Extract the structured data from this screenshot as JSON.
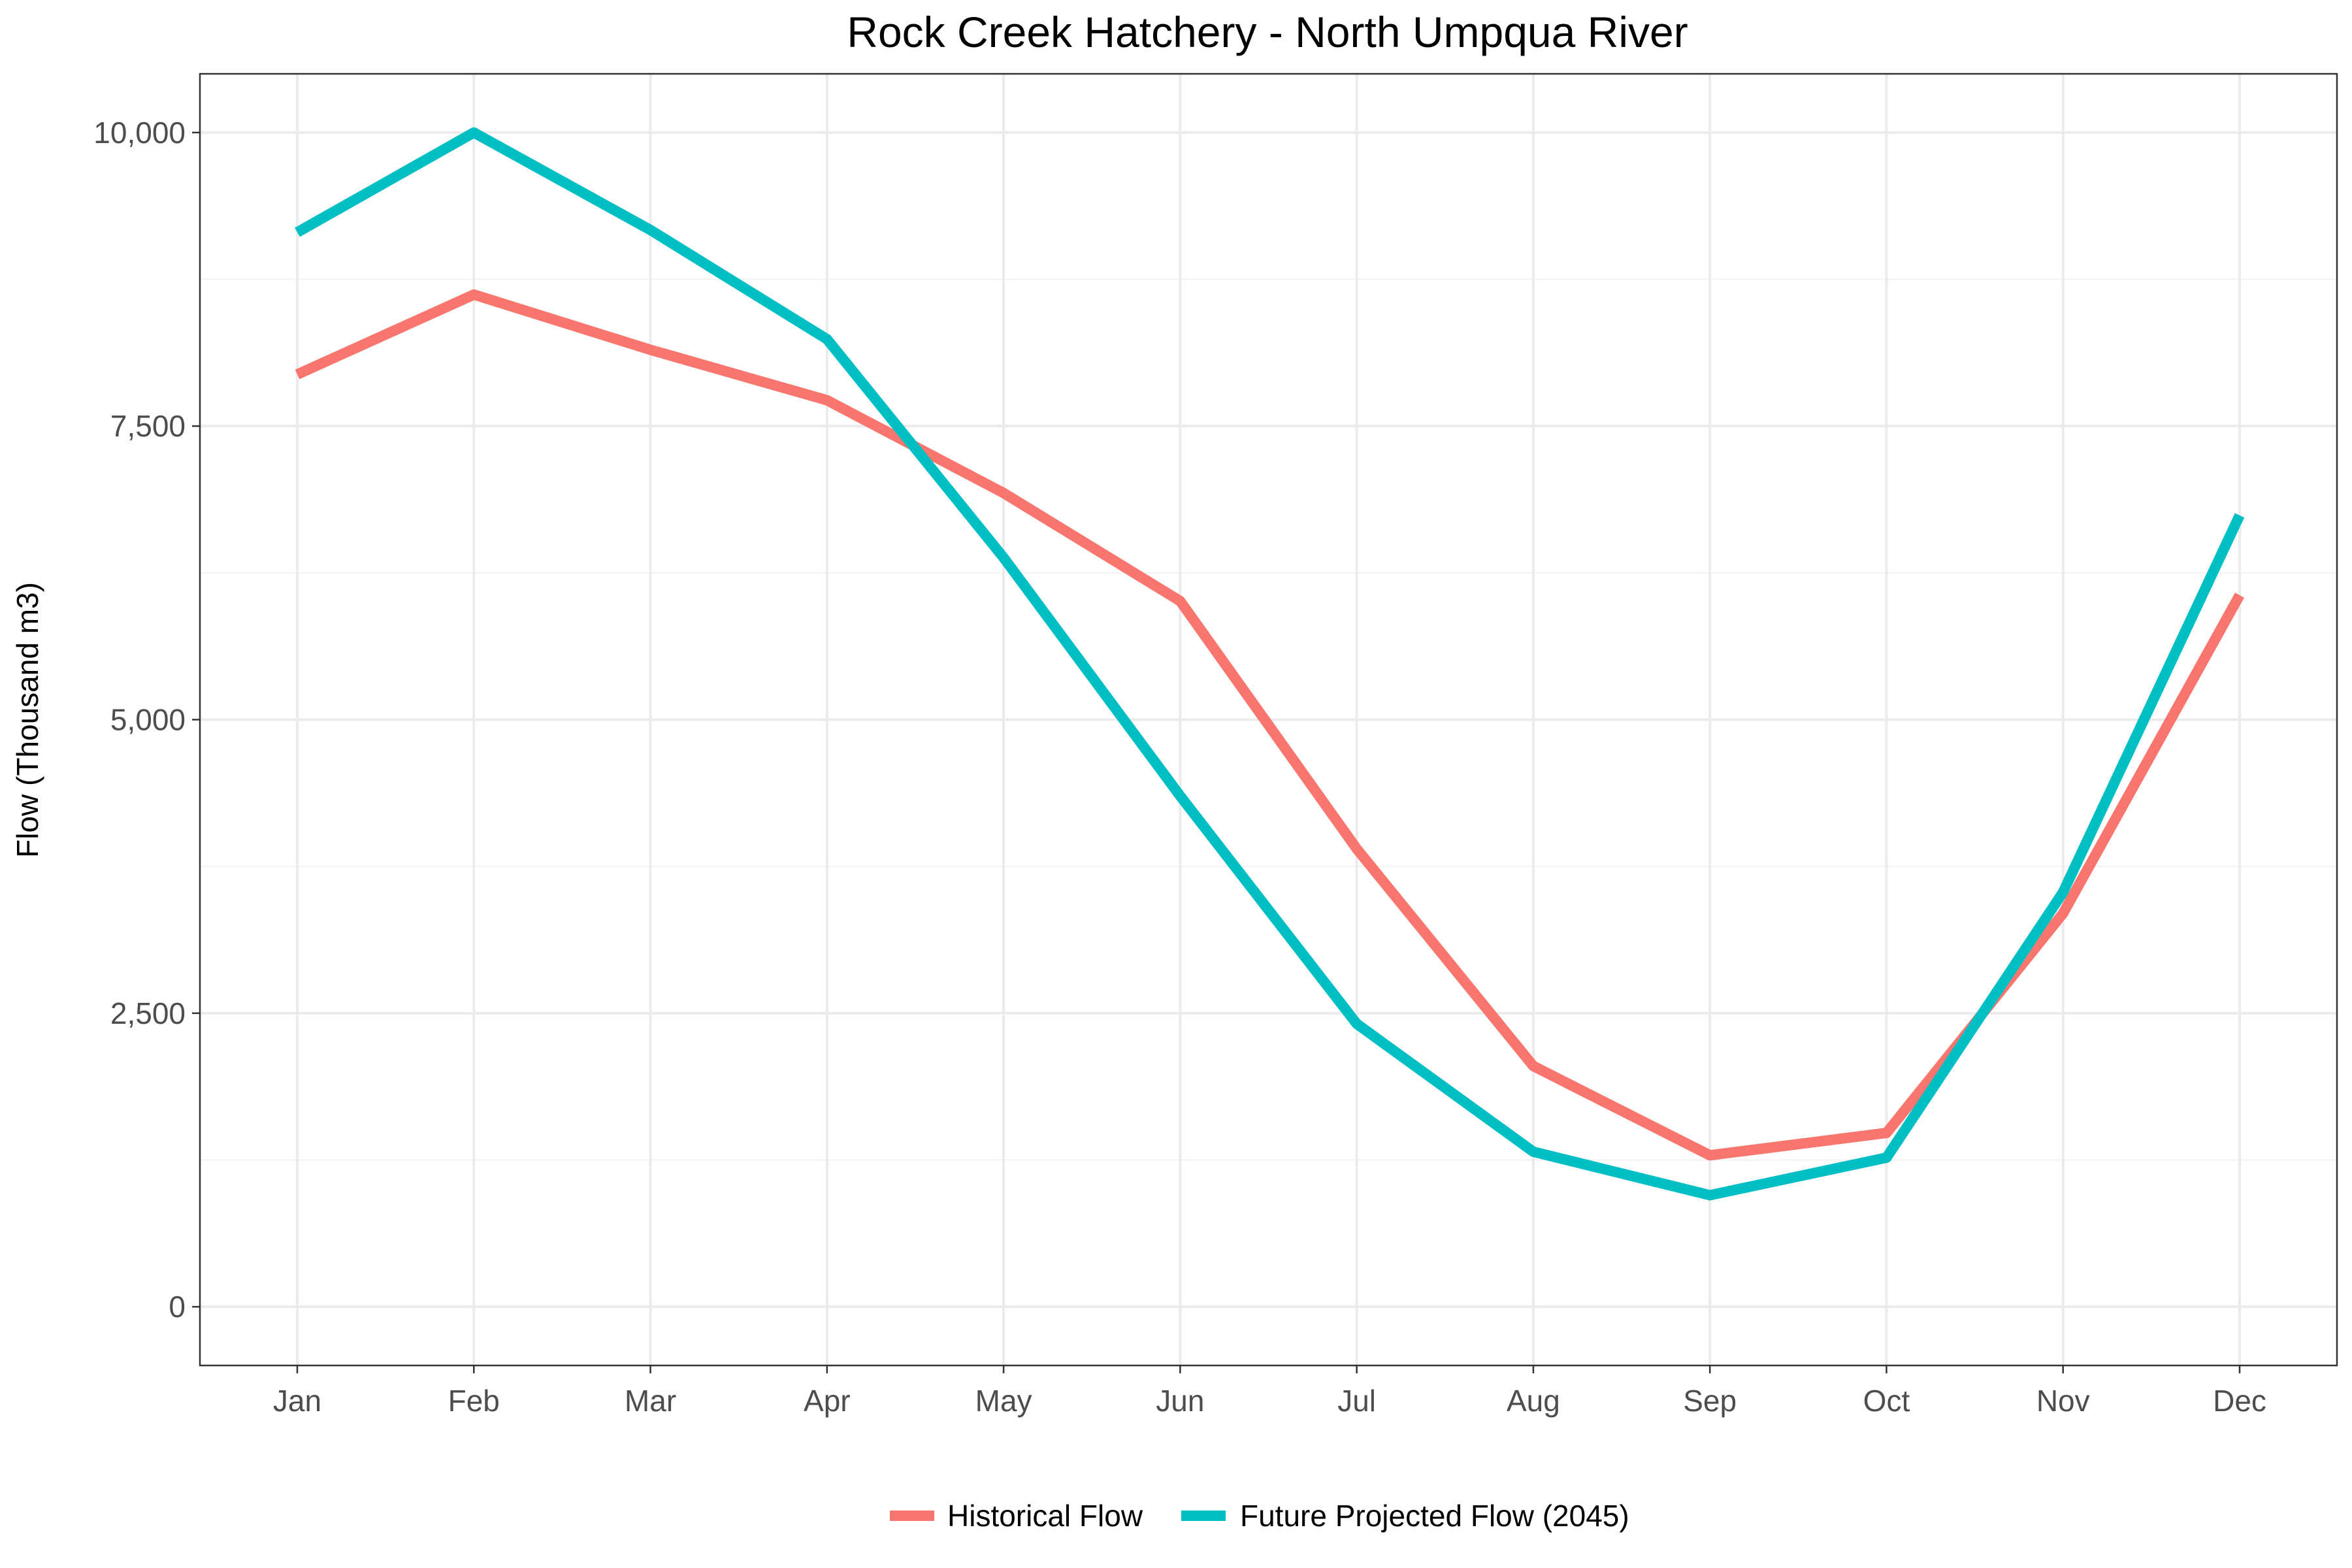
{
  "chart_data": {
    "type": "line",
    "title": "Rock Creek Hatchery - North Umpqua River",
    "xlabel": "",
    "ylabel": "Flow (Thousand m3)",
    "categories": [
      "Jan",
      "Feb",
      "Mar",
      "Apr",
      "May",
      "Jun",
      "Jul",
      "Aug",
      "Sep",
      "Oct",
      "Nov",
      "Dec"
    ],
    "ylim": [
      -500,
      10500
    ],
    "yticks": [
      0,
      2500,
      5000,
      7500,
      10000
    ],
    "ytick_labels": [
      "0",
      "2,500",
      "5,000",
      "7,500",
      "10,000"
    ],
    "grid": true,
    "legend_position": "bottom",
    "series": [
      {
        "name": "Historical Flow",
        "color": "#f8766d",
        "values": [
          7940,
          8620,
          8150,
          7720,
          6930,
          6010,
          3900,
          2050,
          1290,
          1480,
          3350,
          6060
        ]
      },
      {
        "name": "Future Projected Flow (2045)",
        "color": "#00bfc4",
        "values": [
          9150,
          10000,
          9170,
          8240,
          6380,
          4350,
          2410,
          1320,
          950,
          1270,
          3530,
          6740
        ]
      }
    ]
  }
}
